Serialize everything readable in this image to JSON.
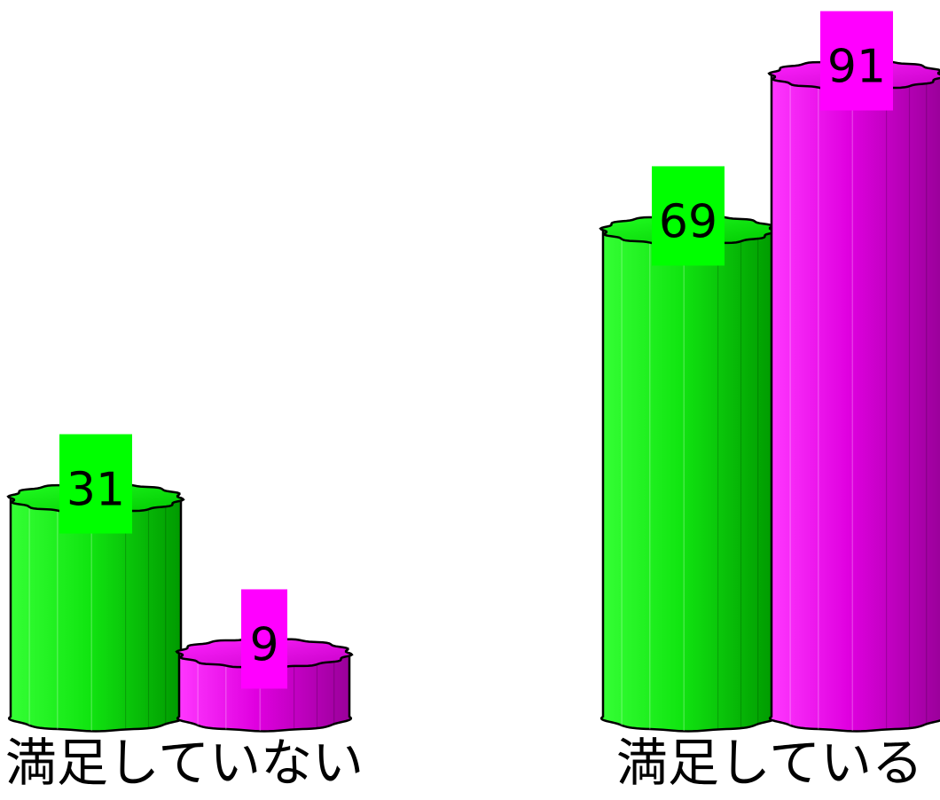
{
  "chart_data": {
    "type": "bar",
    "style": "3d-cylinder",
    "categories": [
      "満足していない",
      "満足している"
    ],
    "series": [
      {
        "values": [
          31,
          69
        ],
        "color": "#00FF00"
      },
      {
        "values": [
          9,
          91
        ],
        "color": "#FF00FF"
      }
    ],
    "data_labels": true,
    "legend": "none",
    "grid": false,
    "axes_visible": false,
    "ylim": [
      0,
      100
    ]
  }
}
